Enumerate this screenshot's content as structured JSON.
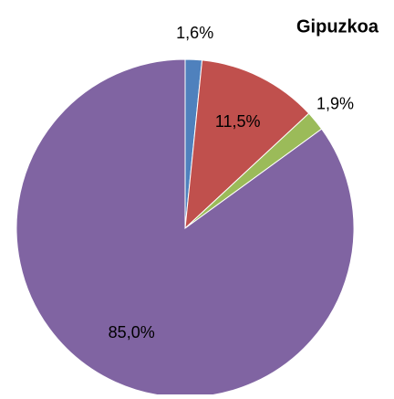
{
  "chart_data": {
    "type": "pie",
    "title": "Gipuzkoa",
    "values": [
      1.6,
      11.5,
      1.9,
      85.0
    ],
    "value_labels": [
      "1,6%",
      "11,5%",
      "1,9%",
      "85,0%"
    ],
    "colors": [
      "#4f81bd",
      "#c0504d",
      "#9bbb59",
      "#8064a2"
    ]
  }
}
